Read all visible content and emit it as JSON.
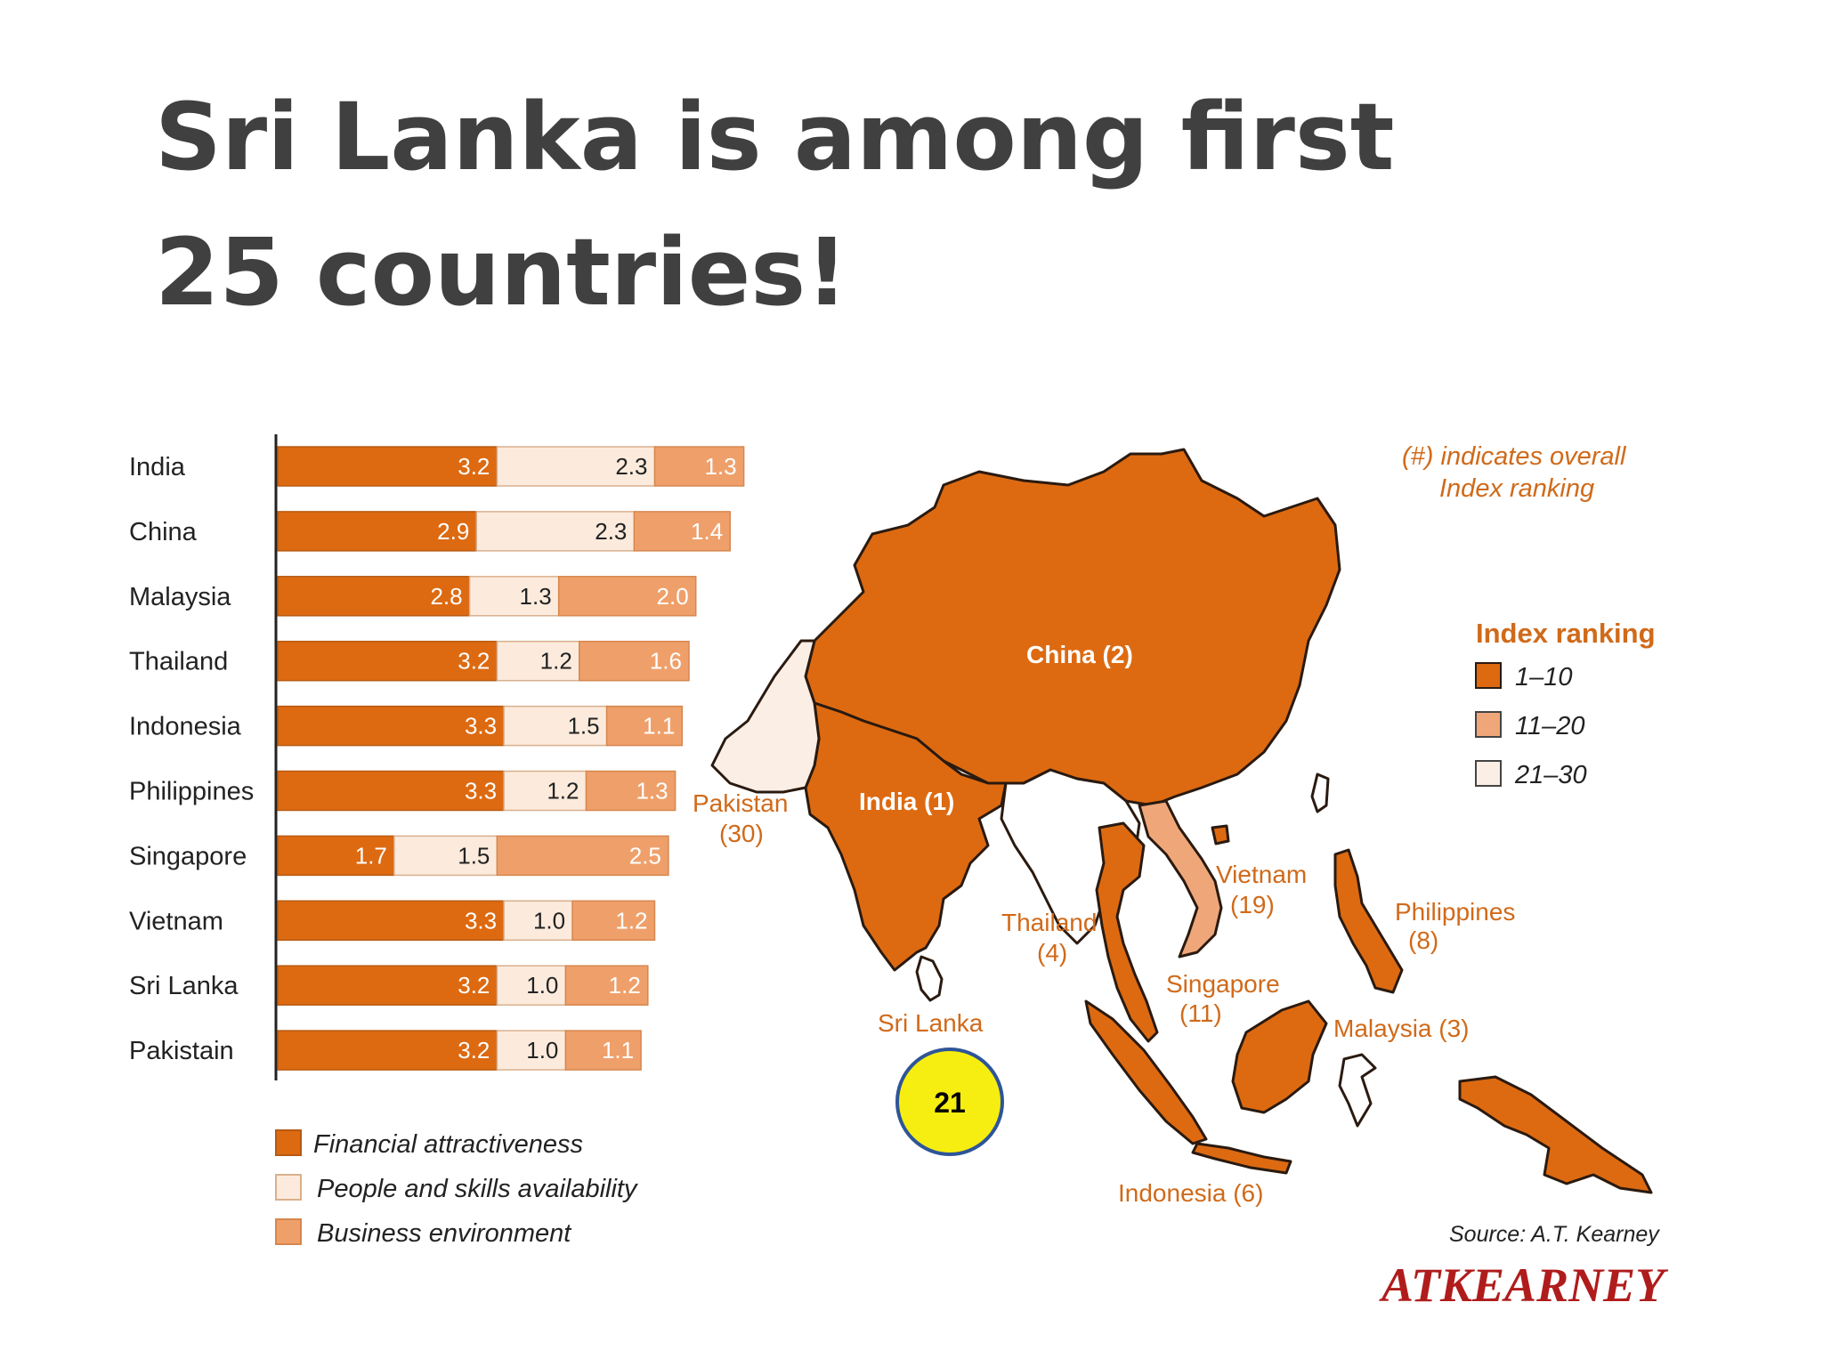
{
  "slide": {
    "title": "Sri Lanka is among first 25 countries!",
    "badge": "21"
  },
  "colors": {
    "financial": "#dd6a11",
    "people": "#fcebdc",
    "business": "#efa06a",
    "rank_1_10": "#dd6a11",
    "rank_11_20": "#efa77a",
    "rank_21_30": "#fbeee4",
    "label_orange": "#d06a1a",
    "badge_fill": "#f6ee10",
    "badge_border": "#2e5597"
  },
  "chart_data": {
    "type": "bar",
    "stacked": true,
    "orientation": "horizontal",
    "categories": [
      "India",
      "China",
      "Malaysia",
      "Thailand",
      "Indonesia",
      "Philippines",
      "Singapore",
      "Vietnam",
      "Sri Lanka",
      "Pakistain"
    ],
    "series": [
      {
        "name": "Financial attractiveness",
        "values": [
          3.2,
          2.9,
          2.8,
          3.2,
          3.3,
          3.3,
          1.7,
          3.3,
          3.2,
          3.2
        ]
      },
      {
        "name": "People and skills availability",
        "values": [
          2.3,
          2.3,
          1.3,
          1.2,
          1.5,
          1.2,
          1.5,
          1.0,
          1.0,
          1.0
        ]
      },
      {
        "name": "Business environment",
        "values": [
          1.3,
          1.4,
          2.0,
          1.6,
          1.1,
          1.3,
          2.5,
          1.2,
          1.2,
          1.1
        ]
      }
    ],
    "value_labels": [
      [
        "3.2",
        "2.3",
        "1.3"
      ],
      [
        "2.9",
        "2.3",
        "1.4"
      ],
      [
        "2.8",
        "1.3",
        "2.0"
      ],
      [
        "3.2",
        "1.2",
        "1.6"
      ],
      [
        "3.3",
        "1.5",
        "1.1"
      ],
      [
        "3.3",
        "1.2",
        "1.3"
      ],
      [
        "1.7",
        "1.5",
        "2.5"
      ],
      [
        "3.3",
        "1.0",
        "1.2"
      ],
      [
        "3.2",
        "1.0",
        "1.2"
      ],
      [
        "3.2",
        "1.0",
        "1.1"
      ]
    ],
    "legend": [
      "Financial attractiveness",
      "People and skills availability",
      "Business environment"
    ],
    "legend_position": "bottom"
  },
  "map": {
    "note_line1": "(#) indicates overall",
    "note_line2": "Index ranking",
    "ranking_title": "Index ranking",
    "ranking_items": [
      "1–10",
      "11–20",
      "21–30"
    ],
    "labels": {
      "china": "China (2)",
      "india": "India (1)",
      "pakistan_name": "Pakistan",
      "pakistan_rank": "(30)",
      "thailand_name": "Thailand",
      "thailand_rank": "(4)",
      "vietnam_name": "Vietnam",
      "vietnam_rank": "(19)",
      "philippines_name": "Philippines",
      "philippines_rank": "(8)",
      "singapore_name": "Singapore",
      "singapore_rank": "(11)",
      "malaysia": "Malaysia (3)",
      "sri_lanka": "Sri Lanka",
      "indonesia": "Indonesia (6)"
    },
    "source": "Source: A.T. Kearney",
    "logo": "ATKEARNEY"
  }
}
